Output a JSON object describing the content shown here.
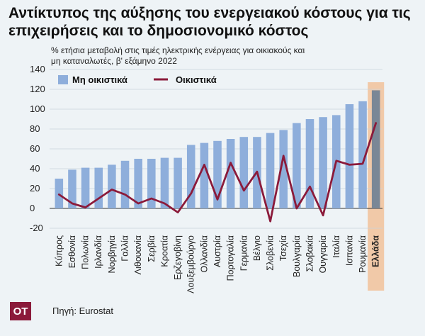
{
  "title": "Αντίκτυπος της αύξησης του ενεργειακού κόστους για τις επιχειρήσεις και το δημοσιονομικό κόστος",
  "subtitle": "% ετήσια μεταβολή στις τιμές ηλεκτρικής ενέργειας για οικιακούς και μη καταναλωτές, β' εξάμηνο 2022",
  "source": "Πηγή: Eurostat",
  "logo": "OT",
  "colors": {
    "bar": "#8eaedb",
    "bar_highlight": "#7a8796",
    "line": "#8b1a3a",
    "highlight_band": "#f1c9a8",
    "background": "#eef3f6"
  },
  "chart_data": {
    "type": "bar",
    "categories": [
      "Κύπρος",
      "Εσθονία",
      "Πολωνία",
      "Ιρλανδία",
      "Νορβηγία",
      "Γαλλία",
      "Λιθουανία",
      "Σερβία",
      "Κροατία",
      "Ερζεγοβίνη",
      "Λουξεμβούργο",
      "Ολλανδία",
      "Αυστρία",
      "Πορτογαλία",
      "Γερμανία",
      "Βέλγιο",
      "Σλοβενία",
      "Τσεχία",
      "Βουλγαρία",
      "Σλοβακία",
      "Ουγγαρία",
      "Ιταλία",
      "Ισπανία",
      "Ρουμανία",
      "Ελλάδα"
    ],
    "highlight_category": "Ελλάδα",
    "series": [
      {
        "name": "Μη οικιστικά",
        "type": "bar",
        "values": [
          30,
          39,
          41,
          41,
          44,
          48,
          50,
          50,
          51,
          51,
          64,
          66,
          68,
          70,
          72,
          72,
          76,
          79,
          86,
          90,
          92,
          94,
          105,
          108,
          119
        ]
      },
      {
        "name": "Οικιστικά",
        "type": "line",
        "values": [
          14,
          5,
          1,
          10,
          19,
          14,
          5,
          10,
          5,
          -4,
          15,
          44,
          9,
          46,
          18,
          37,
          -13,
          53,
          0,
          22,
          -7,
          48,
          44,
          45,
          86
        ]
      }
    ],
    "ylim": [
      -20,
      140
    ],
    "yticks": [
      -20,
      0,
      20,
      40,
      60,
      80,
      100,
      120,
      140
    ],
    "legend": "top-left",
    "grid": true
  }
}
